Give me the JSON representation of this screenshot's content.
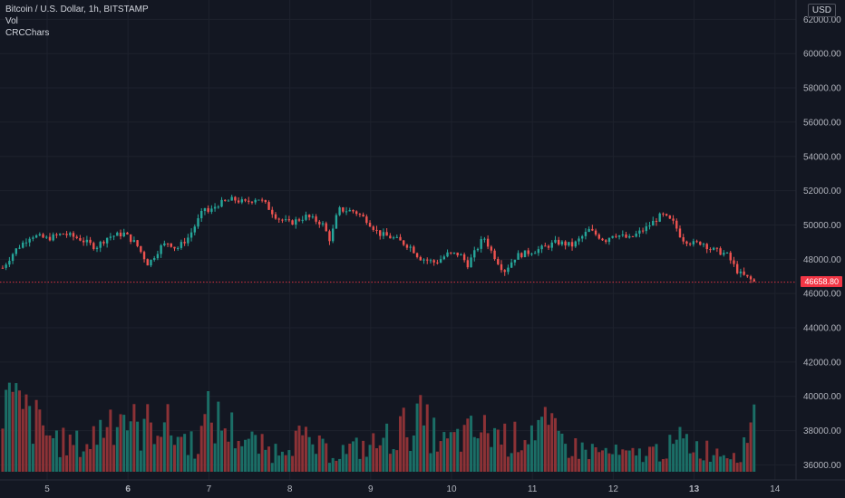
{
  "legend": {
    "symbol": "Bitcoin / U.S. Dollar, 1h, BITSTAMP",
    "volume_label": "Vol",
    "indicator_label": "CRCChars"
  },
  "currency": "USD",
  "last_price": "46658.80",
  "colors": {
    "background": "#131722",
    "grid": "#1e222d",
    "up": "#26a69a",
    "down": "#ef5350",
    "vol_up": "#1b6e66",
    "vol_down": "#8c3236",
    "last_price": "#f23645"
  },
  "chart_data": {
    "type": "candlestick",
    "title": "Bitcoin / U.S. Dollar, 1h, BITSTAMP",
    "y_ticks": [
      "62000.00",
      "60000.00",
      "58000.00",
      "56000.00",
      "54000.00",
      "52000.00",
      "50000.00",
      "48000.00",
      "46000.00",
      "44000.00",
      "42000.00",
      "40000.00",
      "38000.00",
      "36000.00"
    ],
    "x_ticks": [
      "5",
      "6",
      "7",
      "8",
      "9",
      "10",
      "11",
      "12",
      "13",
      "14"
    ],
    "bold_x_ticks": [
      "6",
      "13"
    ],
    "ylim": [
      35600,
      62600
    ],
    "price_path_days": [
      4.45,
      4.6,
      4.8,
      5.0,
      5.2,
      5.4,
      5.6,
      5.75,
      5.95,
      6.1,
      6.25,
      6.4,
      6.5,
      6.6,
      6.75,
      6.95,
      7.0,
      7.1,
      7.3,
      7.45,
      7.6,
      7.7,
      7.85,
      8.0,
      8.2,
      8.4,
      8.5,
      8.6,
      8.8,
      8.95,
      9.1,
      9.3,
      9.5,
      9.6,
      9.8,
      9.95,
      10.1,
      10.2,
      10.4,
      10.5,
      10.65,
      10.8,
      10.95,
      11.1,
      11.3,
      11.5,
      11.7,
      11.9,
      12.0,
      12.2,
      12.4,
      12.6,
      12.75,
      12.85,
      13.0,
      13.1,
      13.2,
      13.4,
      13.55,
      13.7,
      13.75
    ],
    "price_path_values": [
      47500,
      48500,
      49400,
      49200,
      49500,
      49200,
      48700,
      49300,
      49500,
      48900,
      47700,
      48700,
      49000,
      48600,
      49300,
      51000,
      50700,
      51200,
      51500,
      51300,
      51600,
      51200,
      50400,
      50100,
      50500,
      50100,
      49100,
      50900,
      50800,
      50300,
      49500,
      49200,
      48700,
      48100,
      47800,
      48300,
      48300,
      47700,
      49300,
      48400,
      47300,
      48200,
      48400,
      48600,
      49000,
      48800,
      49700,
      49100,
      49500,
      49200,
      49800,
      50600,
      50100,
      49200,
      48900,
      49000,
      48600,
      48300,
      47200,
      46800,
      46658.8
    ],
    "volume_days": [
      4.46,
      4.9,
      4.95,
      5.2,
      5.5,
      5.6,
      5.55,
      5.72,
      5.9,
      6.02,
      6.12,
      6.4,
      6.55,
      6.85,
      7.0,
      7.3,
      7.5,
      7.8,
      8.0,
      8.5,
      8.95,
      9.1,
      9.6,
      9.9,
      10.3,
      10.55,
      10.75,
      11.05,
      11.5,
      12.2,
      12.55,
      12.75,
      12.85,
      13.1,
      13.25,
      13.6,
      13.65,
      13.7,
      13.75
    ],
    "volume_values": [
      21000,
      13500,
      11800,
      8300,
      7600,
      11000,
      8700,
      14700,
      18000,
      15500,
      11600,
      15600,
      11100,
      7800,
      15900,
      11800,
      8700,
      5600,
      10500,
      5400,
      7200,
      8200,
      15000,
      8000,
      11400,
      11400,
      8900,
      14000,
      6900,
      4600,
      6100,
      7200,
      9300,
      6500,
      6100,
      5800,
      7800,
      20000,
      26300
    ]
  }
}
